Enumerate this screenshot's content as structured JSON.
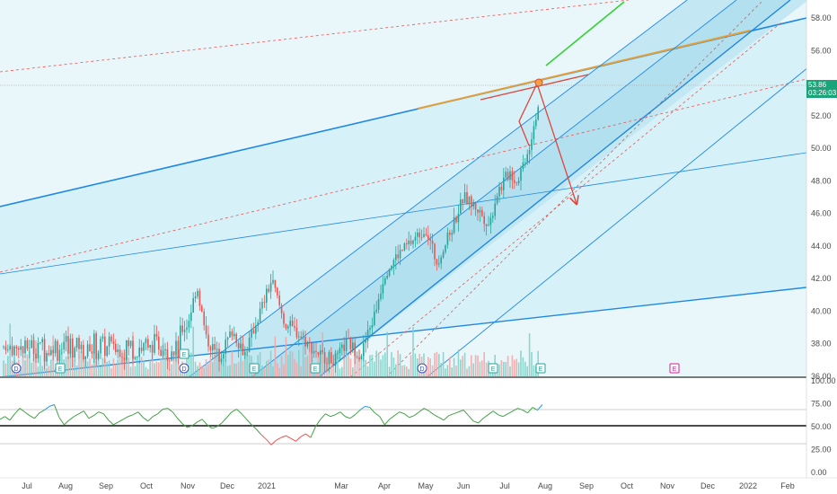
{
  "chart_data": [
    {
      "type": "candlestick",
      "y_axis_labels": [
        "58.00",
        "56.00",
        "54.00",
        "52.00",
        "50.00",
        "48.00",
        "46.00",
        "44.00",
        "42.00",
        "40.00",
        "38.00",
        "36.00"
      ],
      "ylim": [
        36,
        59
      ],
      "x_axis_labels": [
        "Jul",
        "Aug",
        "Sep",
        "Oct",
        "Nov",
        "Dec",
        "2021",
        "Mar",
        "Apr",
        "May",
        "Jun",
        "Jul",
        "Aug",
        "Sep",
        "Oct",
        "Nov",
        "Dec",
        "2022",
        "Feb"
      ],
      "last_price": "53.86",
      "countdown": "03:26:03",
      "markers": [
        "D",
        "E",
        "E",
        "D",
        "E",
        "E",
        "D",
        "E",
        "E"
      ],
      "colors": {
        "up": "#26a69a",
        "down": "#ef5350",
        "channel": "#2196f3",
        "fan_fill": "#d8f0f7",
        "arrow": "#e0443a",
        "trend_orange": "#e3a03a"
      },
      "price_path": [
        [
          "2020-09-20",
          37.6
        ],
        [
          "2020-10-15",
          37.8
        ],
        [
          "2020-11-01",
          39.2
        ],
        [
          "2020-11-08",
          41.6
        ],
        [
          "2020-11-15",
          38.3
        ],
        [
          "2020-11-25",
          37.2
        ],
        [
          "2020-12-05",
          38.8
        ],
        [
          "2020-12-15",
          37.4
        ],
        [
          "2020-12-25",
          39.6
        ],
        [
          "2021-01-05",
          41.9
        ],
        [
          "2021-01-15",
          39.3
        ],
        [
          "2021-01-25",
          38.7
        ],
        [
          "2021-02-05",
          37.8
        ],
        [
          "2021-02-15",
          37.2
        ],
        [
          "2021-02-25",
          37.0
        ],
        [
          "2021-03-05",
          38.1
        ],
        [
          "2021-03-15",
          37.3
        ],
        [
          "2021-03-25",
          39.8
        ],
        [
          "2021-04-01",
          42.3
        ],
        [
          "2021-04-10",
          43.4
        ],
        [
          "2021-04-20",
          44.2
        ],
        [
          "2021-05-01",
          45.1
        ],
        [
          "2021-05-10",
          43.0
        ],
        [
          "2021-05-20",
          44.6
        ],
        [
          "2021-06-01",
          47.0
        ],
        [
          "2021-06-10",
          46.4
        ],
        [
          "2021-06-20",
          45.3
        ],
        [
          "2021-06-25",
          47.2
        ],
        [
          "2021-07-05",
          48.6
        ],
        [
          "2021-07-10",
          47.9
        ],
        [
          "2021-07-20",
          50.2
        ],
        [
          "2021-07-25",
          52.1
        ],
        [
          "2021-07-30",
          53.86
        ]
      ]
    },
    {
      "type": "line",
      "indicator": "oscillator",
      "y_axis_labels": [
        "100.00",
        "75.00",
        "50.00",
        "25.00",
        "0.00"
      ],
      "ylim": [
        -8,
        100
      ],
      "levels": [
        70,
        50,
        30
      ],
      "colors": {
        "normal": "#43a047",
        "overbought": "#2196f3",
        "oversold": "#ef5350"
      },
      "values": [
        58,
        61,
        57,
        64,
        70,
        66,
        62,
        59,
        65,
        68,
        72,
        74,
        60,
        52,
        57,
        61,
        64,
        67,
        59,
        62,
        66,
        64,
        57,
        52,
        55,
        58,
        61,
        63,
        66,
        60,
        56,
        61,
        64,
        69,
        70,
        66,
        59,
        53,
        49,
        51,
        55,
        58,
        52,
        48,
        50,
        54,
        60,
        66,
        69,
        64,
        58,
        52,
        47,
        41,
        36,
        30,
        35,
        38,
        40,
        37,
        34,
        39,
        42,
        38,
        50,
        58,
        64,
        61,
        63,
        66,
        61,
        59,
        63,
        68,
        72,
        71,
        65,
        61,
        52,
        58,
        62,
        66,
        64,
        60,
        62,
        66,
        70,
        67,
        63,
        60,
        57,
        62,
        64,
        66,
        68,
        62,
        56,
        54,
        59,
        63,
        67,
        63,
        61,
        64,
        67,
        70,
        68,
        65,
        71,
        68,
        74
      ]
    }
  ]
}
